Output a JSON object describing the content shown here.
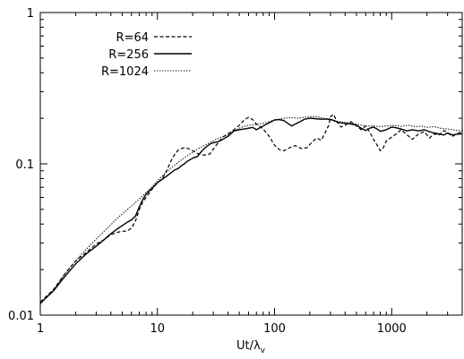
{
  "chart_data": {
    "type": "line",
    "title": "",
    "xlabel": "Ut/λ",
    "xlabel_sub": "v",
    "ylabel": "",
    "xscale": "log",
    "yscale": "log",
    "xlim": [
      1,
      4000
    ],
    "ylim": [
      0.01,
      1
    ],
    "xticks": [
      {
        "value": 1,
        "label": "1"
      },
      {
        "value": 10,
        "label": "10"
      },
      {
        "value": 100,
        "label": "100"
      },
      {
        "value": 1000,
        "label": "1000"
      }
    ],
    "yticks": [
      {
        "value": 0.01,
        "label": "0.01"
      },
      {
        "value": 0.1,
        "label": "0.1"
      },
      {
        "value": 1,
        "label": "1"
      }
    ],
    "grid": false,
    "legend_position": "top-left",
    "series": [
      {
        "name": "R=64",
        "style": "dashed",
        "points": [
          [
            1,
            0.0122
          ],
          [
            1.3,
            0.0148
          ],
          [
            1.6,
            0.0185
          ],
          [
            2,
            0.0228
          ],
          [
            2.5,
            0.0262
          ],
          [
            3,
            0.0295
          ],
          [
            3.5,
            0.0315
          ],
          [
            4,
            0.034
          ],
          [
            4.5,
            0.0352
          ],
          [
            5,
            0.0358
          ],
          [
            5.5,
            0.036
          ],
          [
            6,
            0.0375
          ],
          [
            6.5,
            0.042
          ],
          [
            7,
            0.05
          ],
          [
            7.5,
            0.056
          ],
          [
            8,
            0.06
          ],
          [
            9,
            0.068
          ],
          [
            10,
            0.075
          ],
          [
            11,
            0.08
          ],
          [
            12,
            0.09
          ],
          [
            13,
            0.104
          ],
          [
            14,
            0.115
          ],
          [
            15,
            0.123
          ],
          [
            16,
            0.126
          ],
          [
            17,
            0.128
          ],
          [
            18,
            0.127
          ],
          [
            20,
            0.122
          ],
          [
            22,
            0.117
          ],
          [
            25,
            0.114
          ],
          [
            28,
            0.116
          ],
          [
            30,
            0.125
          ],
          [
            33,
            0.138
          ],
          [
            36,
            0.15
          ],
          [
            40,
            0.158
          ],
          [
            45,
            0.168
          ],
          [
            50,
            0.18
          ],
          [
            55,
            0.195
          ],
          [
            60,
            0.203
          ],
          [
            65,
            0.196
          ],
          [
            70,
            0.183
          ],
          [
            80,
            0.17
          ],
          [
            90,
            0.152
          ],
          [
            100,
            0.133
          ],
          [
            110,
            0.124
          ],
          [
            120,
            0.122
          ],
          [
            135,
            0.128
          ],
          [
            150,
            0.132
          ],
          [
            170,
            0.126
          ],
          [
            190,
            0.128
          ],
          [
            210,
            0.14
          ],
          [
            230,
            0.148
          ],
          [
            250,
            0.143
          ],
          [
            270,
            0.16
          ],
          [
            290,
            0.18
          ],
          [
            300,
            0.205
          ],
          [
            320,
            0.212
          ],
          [
            340,
            0.19
          ],
          [
            370,
            0.175
          ],
          [
            400,
            0.18
          ],
          [
            450,
            0.19
          ],
          [
            500,
            0.178
          ],
          [
            550,
            0.168
          ],
          [
            600,
            0.178
          ],
          [
            650,
            0.162
          ],
          [
            700,
            0.145
          ],
          [
            750,
            0.133
          ],
          [
            800,
            0.122
          ],
          [
            850,
            0.128
          ],
          [
            900,
            0.142
          ],
          [
            1000,
            0.15
          ],
          [
            1100,
            0.158
          ],
          [
            1200,
            0.168
          ],
          [
            1400,
            0.152
          ],
          [
            1500,
            0.145
          ],
          [
            1700,
            0.158
          ],
          [
            1900,
            0.163
          ],
          [
            2100,
            0.148
          ],
          [
            2300,
            0.158
          ],
          [
            2500,
            0.154
          ],
          [
            2800,
            0.166
          ],
          [
            3000,
            0.16
          ],
          [
            3300,
            0.152
          ],
          [
            3600,
            0.158
          ],
          [
            4000,
            0.163
          ]
        ]
      },
      {
        "name": "R=256",
        "style": "solid",
        "points": [
          [
            1,
            0.012
          ],
          [
            1.3,
            0.0145
          ],
          [
            1.6,
            0.0178
          ],
          [
            2,
            0.0218
          ],
          [
            2.5,
            0.0256
          ],
          [
            3,
            0.0285
          ],
          [
            3.5,
            0.0315
          ],
          [
            4,
            0.0345
          ],
          [
            4.5,
            0.037
          ],
          [
            5,
            0.039
          ],
          [
            5.5,
            0.041
          ],
          [
            6,
            0.0425
          ],
          [
            6.5,
            0.0452
          ],
          [
            7,
            0.052
          ],
          [
            7.5,
            0.058
          ],
          [
            8,
            0.063
          ],
          [
            9,
            0.069
          ],
          [
            10,
            0.075
          ],
          [
            11,
            0.079
          ],
          [
            12,
            0.083
          ],
          [
            13,
            0.087
          ],
          [
            14,
            0.091
          ],
          [
            15,
            0.093
          ],
          [
            16,
            0.097
          ],
          [
            17,
            0.1
          ],
          [
            18,
            0.104
          ],
          [
            20,
            0.109
          ],
          [
            22,
            0.112
          ],
          [
            24,
            0.122
          ],
          [
            26,
            0.129
          ],
          [
            28,
            0.135
          ],
          [
            30,
            0.138
          ],
          [
            33,
            0.14
          ],
          [
            36,
            0.145
          ],
          [
            40,
            0.152
          ],
          [
            45,
            0.165
          ],
          [
            50,
            0.168
          ],
          [
            55,
            0.17
          ],
          [
            60,
            0.172
          ],
          [
            65,
            0.174
          ],
          [
            70,
            0.168
          ],
          [
            80,
            0.178
          ],
          [
            90,
            0.187
          ],
          [
            100,
            0.195
          ],
          [
            110,
            0.196
          ],
          [
            120,
            0.193
          ],
          [
            130,
            0.185
          ],
          [
            140,
            0.178
          ],
          [
            150,
            0.183
          ],
          [
            165,
            0.19
          ],
          [
            180,
            0.197
          ],
          [
            200,
            0.2
          ],
          [
            220,
            0.199
          ],
          [
            250,
            0.197
          ],
          [
            280,
            0.198
          ],
          [
            310,
            0.195
          ],
          [
            350,
            0.188
          ],
          [
            400,
            0.185
          ],
          [
            450,
            0.183
          ],
          [
            500,
            0.18
          ],
          [
            550,
            0.172
          ],
          [
            600,
            0.166
          ],
          [
            650,
            0.172
          ],
          [
            700,
            0.175
          ],
          [
            750,
            0.17
          ],
          [
            800,
            0.164
          ],
          [
            850,
            0.166
          ],
          [
            900,
            0.168
          ],
          [
            1000,
            0.175
          ],
          [
            1100,
            0.173
          ],
          [
            1200,
            0.17
          ],
          [
            1350,
            0.165
          ],
          [
            1500,
            0.168
          ],
          [
            1700,
            0.165
          ],
          [
            1900,
            0.168
          ],
          [
            2100,
            0.163
          ],
          [
            2300,
            0.16
          ],
          [
            2500,
            0.158
          ],
          [
            2800,
            0.155
          ],
          [
            3000,
            0.16
          ],
          [
            3300,
            0.155
          ],
          [
            3600,
            0.157
          ],
          [
            4000,
            0.158
          ]
        ]
      },
      {
        "name": "R=1024",
        "style": "dotted",
        "points": [
          [
            1,
            0.0118
          ],
          [
            1.3,
            0.0148
          ],
          [
            1.6,
            0.0185
          ],
          [
            2,
            0.0228
          ],
          [
            2.5,
            0.0276
          ],
          [
            3,
            0.0318
          ],
          [
            3.5,
            0.0358
          ],
          [
            4,
            0.0395
          ],
          [
            4.5,
            0.0435
          ],
          [
            5,
            0.0465
          ],
          [
            5.5,
            0.0495
          ],
          [
            6,
            0.0525
          ],
          [
            7,
            0.0585
          ],
          [
            8,
            0.0645
          ],
          [
            9,
            0.0705
          ],
          [
            10,
            0.0775
          ],
          [
            11,
            0.083
          ],
          [
            12,
            0.0885
          ],
          [
            13,
            0.0935
          ],
          [
            14,
            0.098
          ],
          [
            15,
            0.102
          ],
          [
            16,
            0.106
          ],
          [
            18,
            0.113
          ],
          [
            20,
            0.119
          ],
          [
            22,
            0.125
          ],
          [
            25,
            0.132
          ],
          [
            28,
            0.138
          ],
          [
            30,
            0.142
          ],
          [
            35,
            0.15
          ],
          [
            40,
            0.155
          ],
          [
            45,
            0.165
          ],
          [
            50,
            0.172
          ],
          [
            55,
            0.177
          ],
          [
            60,
            0.18
          ],
          [
            70,
            0.182
          ],
          [
            80,
            0.185
          ],
          [
            90,
            0.19
          ],
          [
            100,
            0.195
          ],
          [
            120,
            0.2
          ],
          [
            140,
            0.202
          ],
          [
            160,
            0.2
          ],
          [
            180,
            0.203
          ],
          [
            200,
            0.205
          ],
          [
            230,
            0.205
          ],
          [
            260,
            0.2
          ],
          [
            300,
            0.198
          ],
          [
            350,
            0.19
          ],
          [
            400,
            0.188
          ],
          [
            450,
            0.186
          ],
          [
            500,
            0.183
          ],
          [
            600,
            0.178
          ],
          [
            700,
            0.178
          ],
          [
            800,
            0.176
          ],
          [
            900,
            0.178
          ],
          [
            1000,
            0.18
          ],
          [
            1200,
            0.177
          ],
          [
            1400,
            0.18
          ],
          [
            1600,
            0.176
          ],
          [
            1800,
            0.178
          ],
          [
            2000,
            0.174
          ],
          [
            2300,
            0.176
          ],
          [
            2600,
            0.172
          ],
          [
            3000,
            0.17
          ],
          [
            3500,
            0.167
          ],
          [
            4000,
            0.165
          ]
        ]
      }
    ]
  }
}
